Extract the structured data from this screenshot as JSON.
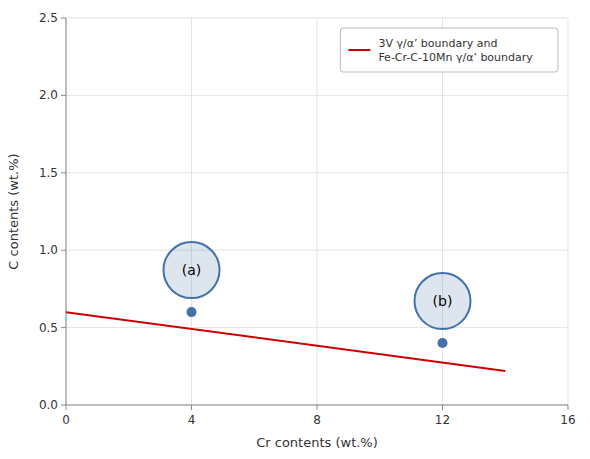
{
  "chart_data": {
    "type": "line",
    "xlabel": "Cr contents (wt.%)",
    "ylabel": "C contents (wt.%)",
    "xlim": [
      0,
      16
    ],
    "ylim": [
      0,
      2.5
    ],
    "xticks": [
      0,
      4,
      8,
      12,
      16
    ],
    "yticks": [
      {
        "value": 0,
        "label": "0.0"
      },
      0.5,
      {
        "value": 1.0,
        "label": "1.0"
      },
      1.5,
      {
        "value": 2.0,
        "label": "2.0"
      },
      2.5
    ],
    "grid": true,
    "legend": "upper right",
    "series": [
      {
        "name": "3V γ/α’ boundary and\nFe-Cr-C-10Mn γ/α’ boundary",
        "color": "#cc0000",
        "x": [
          0,
          14
        ],
        "values": [
          0.6,
          0.22
        ]
      },
      {
        "type": "scatter",
        "color": "#4472a8",
        "x": [
          4.0,
          12.0
        ],
        "values": [
          0.6,
          0.4
        ],
        "labels": [
          "(a)",
          "(b)"
        ]
      }
    ]
  }
}
